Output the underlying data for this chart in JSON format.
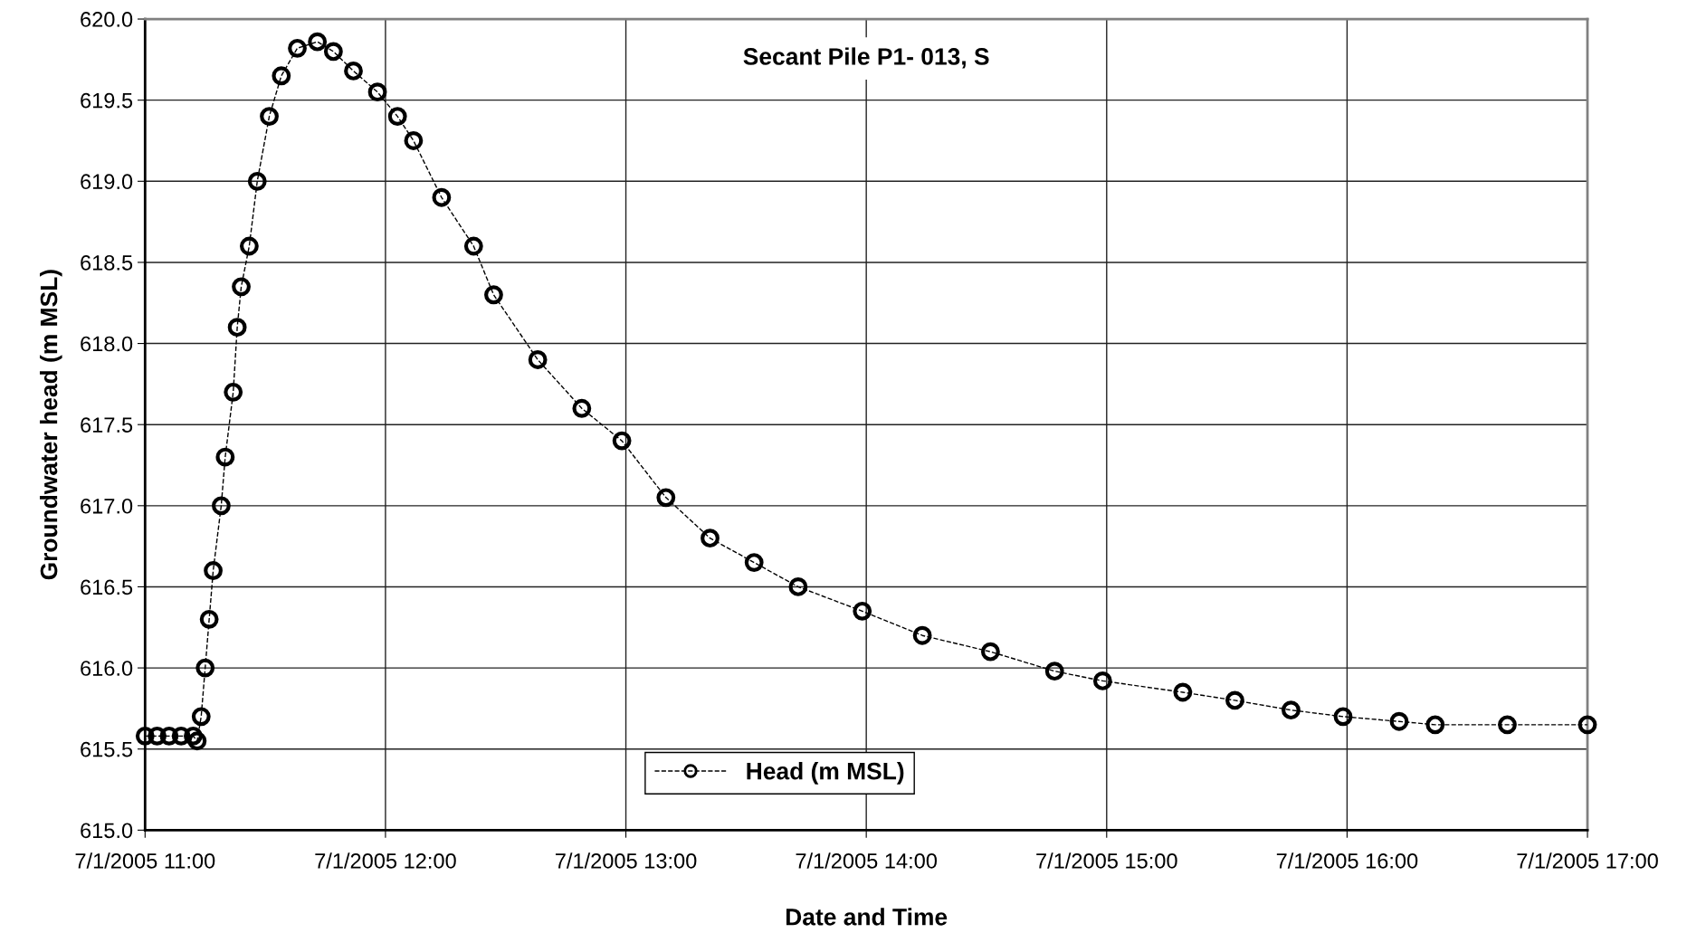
{
  "chart_data": {
    "type": "line",
    "title": "Secant Pile P1- 013, S",
    "xlabel": "Date and Time",
    "ylabel": "Groundwater head (m MSL)",
    "x": [
      "2005-07-01T11:00",
      "2005-07-01T11:03",
      "2005-07-01T11:06",
      "2005-07-01T11:09",
      "2005-07-01T11:12",
      "2005-07-01T11:13",
      "2005-07-01T11:14",
      "2005-07-01T11:15",
      "2005-07-01T11:16",
      "2005-07-01T11:17",
      "2005-07-01T11:19",
      "2005-07-01T11:20",
      "2005-07-01T11:22",
      "2005-07-01T11:23",
      "2005-07-01T11:24",
      "2005-07-01T11:26",
      "2005-07-01T11:28",
      "2005-07-01T11:31",
      "2005-07-01T11:34",
      "2005-07-01T11:38",
      "2005-07-01T11:43",
      "2005-07-01T11:47",
      "2005-07-01T11:52",
      "2005-07-01T11:58",
      "2005-07-01T12:03",
      "2005-07-01T12:07",
      "2005-07-01T12:14",
      "2005-07-01T12:22",
      "2005-07-01T12:27",
      "2005-07-01T12:38",
      "2005-07-01T12:49",
      "2005-07-01T12:59",
      "2005-07-01T13:10",
      "2005-07-01T13:21",
      "2005-07-01T13:32",
      "2005-07-01T13:43",
      "2005-07-01T13:59",
      "2005-07-01T14:14",
      "2005-07-01T14:31",
      "2005-07-01T14:47",
      "2005-07-01T14:59",
      "2005-07-01T15:19",
      "2005-07-01T15:32",
      "2005-07-01T15:46",
      "2005-07-01T15:59",
      "2005-07-01T16:13",
      "2005-07-01T16:22",
      "2005-07-01T16:40",
      "2005-07-01T17:00"
    ],
    "series": [
      {
        "name": "Head (m MSL)",
        "color": "#000000",
        "values": [
          615.58,
          615.58,
          615.58,
          615.58,
          615.58,
          615.55,
          615.7,
          616.0,
          616.3,
          616.6,
          617.0,
          617.3,
          617.7,
          618.1,
          618.35,
          618.6,
          619.0,
          619.4,
          619.65,
          619.82,
          619.86,
          619.8,
          619.68,
          619.55,
          619.4,
          619.25,
          618.9,
          618.6,
          618.3,
          617.9,
          617.6,
          617.4,
          617.05,
          616.8,
          616.65,
          616.5,
          616.35,
          616.2,
          616.1,
          615.98,
          615.92,
          615.85,
          615.8,
          615.74,
          615.7,
          615.67,
          615.65,
          615.65,
          615.65
        ]
      }
    ],
    "xlim": [
      "2005-07-01T11:00",
      "2005-07-01T17:00"
    ],
    "xticks": [
      {
        "value": "2005-07-01T11:00",
        "label": "7/1/2005 11:00"
      },
      {
        "value": "2005-07-01T12:00",
        "label": "7/1/2005 12:00"
      },
      {
        "value": "2005-07-01T13:00",
        "label": "7/1/2005 13:00"
      },
      {
        "value": "2005-07-01T14:00",
        "label": "7/1/2005 14:00"
      },
      {
        "value": "2005-07-01T15:00",
        "label": "7/1/2005 15:00"
      },
      {
        "value": "2005-07-01T16:00",
        "label": "7/1/2005 16:00"
      },
      {
        "value": "2005-07-01T17:00",
        "label": "7/1/2005 17:00"
      }
    ],
    "ylim": [
      615,
      620
    ],
    "yticks": [
      {
        "value": 615,
        "label": "615.0"
      },
      {
        "value": 615.5,
        "label": "615.5"
      },
      {
        "value": 616,
        "label": "616.0"
      },
      {
        "value": 616.5,
        "label": "616.5"
      },
      {
        "value": 617,
        "label": "617.0"
      },
      {
        "value": 617.5,
        "label": "617.5"
      },
      {
        "value": 618,
        "label": "618.0"
      },
      {
        "value": 618.5,
        "label": "618.5"
      },
      {
        "value": 619,
        "label": "619.0"
      },
      {
        "value": 619.5,
        "label": "619.5"
      },
      {
        "value": 620,
        "label": "620.0"
      }
    ],
    "grid": true,
    "legend": "bottom",
    "marker": "circle",
    "line_style": "dashed"
  }
}
